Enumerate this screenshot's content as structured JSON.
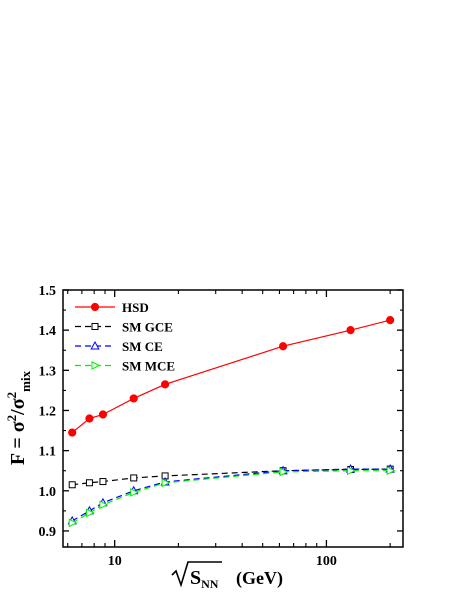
{
  "chart_data": {
    "type": "line",
    "xscale": "log",
    "xlim": [
      5.7,
      230
    ],
    "ylim": [
      0.86,
      1.5
    ],
    "yticks": [
      0.9,
      1.0,
      1.1,
      1.2,
      1.3,
      1.4,
      1.5
    ],
    "xticks": [
      10,
      100
    ],
    "ytick_labels": [
      "0.9",
      "1.0",
      "1.1",
      "1.2",
      "1.3",
      "1.4",
      "1.5"
    ],
    "xtick_labels": [
      "10",
      "100"
    ],
    "ylabel": {
      "prefix": "F = σ",
      "sup1": "2",
      "mid": "/σ",
      "sup2": "2",
      "sub": "mix"
    },
    "xlabel": {
      "base": "S",
      "sub": "NN",
      "unit": "(GeV)"
    },
    "legend_position": "top-left",
    "series": [
      {
        "name": "HSD",
        "color": "#ff0000",
        "dash": "solid",
        "marker": "filled-circle",
        "x": [
          6.3,
          7.6,
          8.8,
          12.3,
          17.3,
          62.4,
          130,
          200
        ],
        "y": [
          1.145,
          1.18,
          1.19,
          1.23,
          1.265,
          1.36,
          1.4,
          1.425
        ]
      },
      {
        "name": "SM GCE",
        "color": "#000000",
        "dash": "dashed",
        "marker": "open-square",
        "x": [
          6.3,
          7.6,
          8.8,
          12.3,
          17.3,
          62.4,
          130,
          200
        ],
        "y": [
          1.015,
          1.02,
          1.023,
          1.032,
          1.037,
          1.05,
          1.053,
          1.054
        ]
      },
      {
        "name": "SM CE",
        "color": "#0000ff",
        "dash": "dashed",
        "marker": "open-triangle-up",
        "x": [
          6.3,
          7.6,
          8.8,
          12.3,
          17.3,
          62.4,
          130,
          200
        ],
        "y": [
          0.925,
          0.95,
          0.97,
          1.0,
          1.022,
          1.05,
          1.054,
          1.054
        ]
      },
      {
        "name": "SM MCE",
        "color": "#00ee00",
        "dash": "dashed",
        "marker": "open-triangle-right",
        "x": [
          6.3,
          7.6,
          8.8,
          12.3,
          17.3,
          62.4,
          130,
          200
        ],
        "y": [
          0.92,
          0.945,
          0.965,
          0.996,
          1.02,
          1.047,
          1.05,
          1.05
        ]
      }
    ]
  }
}
